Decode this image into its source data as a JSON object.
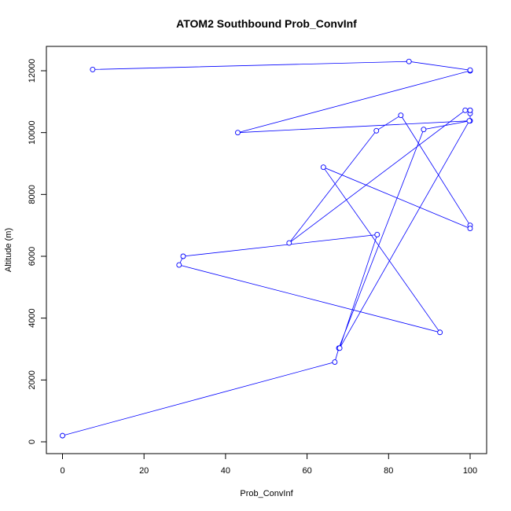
{
  "chart_data": {
    "type": "line",
    "title": "ATOM2 Southbound Prob_ConvInf",
    "xlabel": "Prob_ConvInf",
    "ylabel": "Altitude (m)",
    "xlim": [
      0,
      100
    ],
    "ylim": [
      0,
      12000
    ],
    "x_ticks": [
      0,
      20,
      40,
      60,
      80,
      100
    ],
    "y_ticks": [
      0,
      2000,
      4000,
      6000,
      8000,
      10000,
      12000
    ],
    "grid": false,
    "line_color": "#0000ff",
    "marker": "open-circle",
    "series": [
      {
        "x": [
          0,
          66.8,
          67.8,
          88.6,
          100,
          100,
          100,
          100,
          98.8,
          55.6,
          77.0,
          83.0,
          100,
          100,
          64.0,
          92.6,
          28.6,
          29.6,
          77.2,
          68.0,
          99.8,
          43.0,
          100,
          100,
          85.0,
          7.4
        ],
        "y": [
          200,
          2580,
          3030,
          10100,
          10380,
          10620,
          10720,
          10720,
          10720,
          6430,
          10060,
          10560,
          7000,
          6900,
          8880,
          3540,
          5720,
          6000,
          6700,
          3030,
          10380,
          10000,
          12000,
          12020,
          12300,
          12040
        ]
      }
    ]
  }
}
